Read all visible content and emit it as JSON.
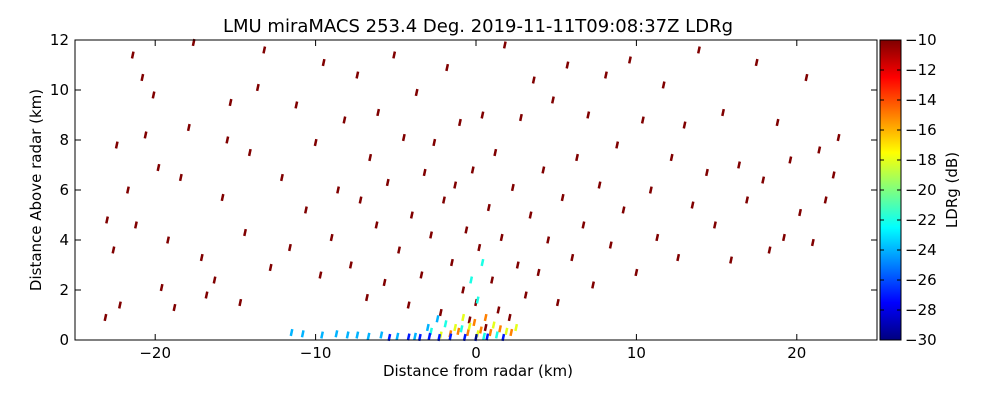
{
  "chart_data": {
    "type": "scatter",
    "title": "LMU miraMACS 253.4 Deg. 2019-11-11T09:08:37Z  LDRg",
    "xlabel": "Distance from radar (km)",
    "ylabel": "Distance Above radar  (km)",
    "xlim": [
      -25,
      25
    ],
    "ylim": [
      0,
      12
    ],
    "x_ticks": [
      -20,
      -10,
      0,
      10,
      20
    ],
    "y_ticks": [
      0,
      2,
      4,
      6,
      8,
      10,
      12
    ],
    "grid": false,
    "colorbar": {
      "label": "LDRg (dB)",
      "range": [
        -30,
        -10
      ],
      "ticks": [
        -10,
        -12,
        -14,
        -16,
        -18,
        -20,
        -22,
        -24,
        -26,
        -28,
        -30
      ],
      "colormap": "jet"
    },
    "series": [
      {
        "label_dB": -10,
        "points": [
          [
            -23,
            4.8
          ],
          [
            -22.6,
            3.6
          ],
          [
            -22.4,
            7.8
          ],
          [
            -22.2,
            1.4
          ],
          [
            -23.1,
            0.9
          ],
          [
            -21.7,
            6.0
          ],
          [
            -21.2,
            4.6
          ],
          [
            -20.6,
            8.2
          ],
          [
            -20.1,
            9.8
          ],
          [
            -20.8,
            10.5
          ],
          [
            -21.4,
            11.4
          ],
          [
            -19.8,
            6.9
          ],
          [
            -19.2,
            4.0
          ],
          [
            -19.6,
            2.1
          ],
          [
            -18.8,
            1.3
          ],
          [
            -18.4,
            6.5
          ],
          [
            -17.9,
            8.5
          ],
          [
            -17.6,
            11.9
          ],
          [
            -17.1,
            3.3
          ],
          [
            -16.8,
            1.8
          ],
          [
            -16.3,
            2.4
          ],
          [
            -15.8,
            5.7
          ],
          [
            -15.5,
            8.0
          ],
          [
            -15.3,
            9.5
          ],
          [
            -14.7,
            1.5
          ],
          [
            -14.4,
            4.3
          ],
          [
            -14.1,
            7.5
          ],
          [
            -13.6,
            10.1
          ],
          [
            -13.2,
            11.6
          ],
          [
            -12.8,
            2.9
          ],
          [
            -12.1,
            6.5
          ],
          [
            -11.6,
            3.7
          ],
          [
            -11.2,
            9.4
          ],
          [
            -10.6,
            5.2
          ],
          [
            -10.0,
            7.9
          ],
          [
            -9.7,
            2.6
          ],
          [
            -9.5,
            11.1
          ],
          [
            -9.0,
            4.1
          ],
          [
            -8.6,
            6.0
          ],
          [
            -8.2,
            8.8
          ],
          [
            -7.8,
            3.0
          ],
          [
            -7.4,
            10.6
          ],
          [
            -7.2,
            5.6
          ],
          [
            -6.8,
            1.7
          ],
          [
            -6.6,
            7.3
          ],
          [
            -6.2,
            4.6
          ],
          [
            -6.1,
            9.1
          ],
          [
            -5.7,
            2.3
          ],
          [
            -5.5,
            6.3
          ],
          [
            -5.1,
            11.4
          ],
          [
            -4.8,
            3.6
          ],
          [
            -4.5,
            8.1
          ],
          [
            -4.2,
            1.4
          ],
          [
            -4.0,
            5.0
          ],
          [
            -3.7,
            9.9
          ],
          [
            -3.4,
            2.6
          ],
          [
            -3.2,
            6.7
          ],
          [
            -2.8,
            4.2
          ],
          [
            -2.6,
            7.9
          ],
          [
            -2.2,
            1.1
          ],
          [
            -2.0,
            5.6
          ],
          [
            -1.8,
            10.9
          ],
          [
            -1.5,
            3.1
          ],
          [
            -1.3,
            6.2
          ],
          [
            -1.0,
            8.7
          ],
          [
            -0.8,
            2.0
          ],
          [
            -0.6,
            4.4
          ],
          [
            -0.4,
            0.8
          ],
          [
            -0.2,
            6.8
          ],
          [
            0.0,
            1.5
          ],
          [
            0.2,
            3.7
          ],
          [
            0.4,
            9.0
          ],
          [
            0.6,
            0.5
          ],
          [
            0.8,
            5.3
          ],
          [
            1.0,
            2.4
          ],
          [
            1.2,
            7.5
          ],
          [
            1.4,
            1.2
          ],
          [
            1.6,
            4.1
          ],
          [
            1.8,
            11.8
          ],
          [
            2.1,
            0.9
          ],
          [
            2.3,
            6.1
          ],
          [
            2.6,
            3.0
          ],
          [
            2.8,
            8.9
          ],
          [
            3.1,
            1.8
          ],
          [
            3.4,
            5.0
          ],
          [
            3.6,
            10.4
          ],
          [
            3.9,
            2.7
          ],
          [
            4.2,
            6.8
          ],
          [
            4.5,
            4.0
          ],
          [
            4.8,
            9.6
          ],
          [
            5.1,
            1.5
          ],
          [
            5.4,
            5.7
          ],
          [
            5.7,
            11.0
          ],
          [
            6.0,
            3.3
          ],
          [
            6.3,
            7.3
          ],
          [
            6.7,
            4.6
          ],
          [
            7.0,
            9.0
          ],
          [
            7.3,
            2.2
          ],
          [
            7.7,
            6.2
          ],
          [
            8.1,
            10.6
          ],
          [
            8.4,
            3.8
          ],
          [
            8.8,
            7.8
          ],
          [
            9.2,
            5.2
          ],
          [
            9.6,
            11.2
          ],
          [
            10.0,
            2.7
          ],
          [
            10.4,
            8.8
          ],
          [
            10.9,
            6.0
          ],
          [
            11.3,
            4.1
          ],
          [
            11.7,
            10.2
          ],
          [
            12.2,
            7.3
          ],
          [
            12.6,
            3.3
          ],
          [
            13.0,
            8.6
          ],
          [
            13.5,
            5.4
          ],
          [
            13.9,
            11.6
          ],
          [
            14.4,
            6.7
          ],
          [
            14.9,
            4.6
          ],
          [
            15.4,
            9.1
          ],
          [
            15.9,
            3.2
          ],
          [
            16.4,
            7.0
          ],
          [
            16.9,
            5.6
          ],
          [
            17.5,
            11.1
          ],
          [
            17.9,
            6.4
          ],
          [
            18.3,
            3.6
          ],
          [
            18.8,
            8.7
          ],
          [
            19.2,
            4.1
          ],
          [
            19.6,
            7.2
          ],
          [
            20.2,
            5.1
          ],
          [
            20.6,
            10.5
          ],
          [
            21.0,
            3.9
          ],
          [
            21.4,
            7.6
          ],
          [
            21.8,
            5.6
          ],
          [
            22.3,
            6.6
          ],
          [
            22.6,
            8.1
          ]
        ]
      },
      {
        "label_dB": -15,
        "points": [
          [
            -1.6,
            0.25
          ],
          [
            -1.1,
            0.35
          ],
          [
            -0.5,
            0.3
          ],
          [
            0.3,
            0.4
          ],
          [
            0.9,
            0.3
          ],
          [
            1.5,
            0.45
          ],
          [
            2.2,
            0.3
          ],
          [
            -0.1,
            0.7
          ],
          [
            0.6,
            0.9
          ]
        ]
      },
      {
        "label_dB": -18,
        "points": [
          [
            -2.2,
            0.2
          ],
          [
            -1.3,
            0.5
          ],
          [
            -0.4,
            0.55
          ],
          [
            0.1,
            0.25
          ],
          [
            1.1,
            0.6
          ],
          [
            1.9,
            0.35
          ],
          [
            2.5,
            0.5
          ],
          [
            -0.8,
            0.9
          ]
        ]
      },
      {
        "label_dB": -22,
        "points": [
          [
            -2.8,
            0.35
          ],
          [
            -1.9,
            0.65
          ],
          [
            -0.9,
            0.45
          ],
          [
            0.5,
            0.15
          ],
          [
            1.3,
            0.2
          ],
          [
            0.1,
            1.6
          ],
          [
            -0.3,
            2.4
          ],
          [
            0.4,
            3.1
          ]
        ]
      },
      {
        "label_dB": -24,
        "points": [
          [
            -11.5,
            0.3
          ],
          [
            -10.8,
            0.25
          ],
          [
            -9.6,
            0.2
          ],
          [
            -8.7,
            0.25
          ],
          [
            -8.0,
            0.2
          ],
          [
            -7.4,
            0.2
          ],
          [
            -6.7,
            0.15
          ],
          [
            -5.9,
            0.2
          ],
          [
            -4.9,
            0.15
          ],
          [
            -3.8,
            0.15
          ],
          [
            -3.0,
            0.5
          ],
          [
            -2.4,
            0.85
          ]
        ]
      },
      {
        "label_dB": -27,
        "points": [
          [
            -5.4,
            0.1
          ],
          [
            -4.2,
            0.12
          ],
          [
            -3.5,
            0.1
          ],
          [
            -2.9,
            0.14
          ],
          [
            -2.3,
            0.1
          ],
          [
            -1.6,
            0.12
          ],
          [
            -0.7,
            0.1
          ],
          [
            0.0,
            0.1
          ],
          [
            0.7,
            0.12
          ],
          [
            1.7,
            0.1
          ]
        ]
      }
    ]
  }
}
